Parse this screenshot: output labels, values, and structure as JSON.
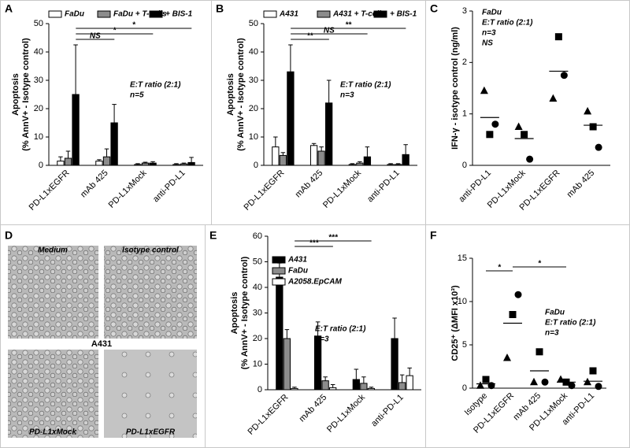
{
  "chart_data": [
    {
      "type": "bar",
      "letter": "A",
      "ylabel": [
        "Apoptosis",
        "(% AnnV+ - Isotype control)"
      ],
      "categories": [
        "PD-L1xEGFR",
        "mAb 425",
        "PD-L1xMock",
        "anti-PD-L1"
      ],
      "series": [
        {
          "name": "FaDu",
          "color": "#ffffff",
          "values": [
            1.5,
            1.5,
            0.3,
            0.3
          ],
          "errors": [
            1.5,
            0.5,
            0.3,
            0.3
          ]
        },
        {
          "name": "FaDu + T-cells",
          "color": "#8c8c8c",
          "values": [
            2.5,
            3,
            0.8,
            0.5
          ],
          "errors": [
            2.5,
            2.8,
            0.3,
            0.3
          ]
        },
        {
          "name": "+ BIS-1",
          "color": "#000000",
          "values": [
            25,
            15,
            0.8,
            1
          ],
          "errors": [
            17.5,
            6.5,
            0.5,
            1.8
          ]
        }
      ],
      "ylim": [
        0,
        50
      ],
      "yticks": [
        0,
        10,
        20,
        30,
        40,
        50
      ],
      "legend": "top",
      "annotations": [
        "E:T ratio (2:1)",
        "n=5"
      ],
      "comparisons": [
        {
          "label": "NS",
          "between": [
            0,
            1
          ]
        },
        {
          "label": "*",
          "between": [
            0,
            2
          ]
        },
        {
          "label": "*",
          "between": [
            0,
            3
          ]
        }
      ]
    },
    {
      "type": "bar",
      "letter": "B",
      "ylabel": [
        "Apoptosis",
        "(% AnnV+ - Isotype control)"
      ],
      "categories": [
        "PD-L1xEGFR",
        "mAb 425",
        "PD-L1xMock",
        "anti-PD-L1"
      ],
      "series": [
        {
          "name": "A431",
          "color": "#ffffff",
          "values": [
            6.5,
            7,
            0.3,
            0.3
          ],
          "errors": [
            3.5,
            0.7,
            0.3,
            0.3
          ]
        },
        {
          "name": "A431 + T-cells",
          "color": "#8c8c8c",
          "values": [
            3.5,
            5,
            0.8,
            0.3
          ],
          "errors": [
            1,
            1.5,
            0.5,
            0.3
          ]
        },
        {
          "name": "+ BIS-1",
          "color": "#000000",
          "values": [
            33,
            22,
            3,
            3.8
          ],
          "errors": [
            9.5,
            8,
            3.5,
            3.5
          ]
        }
      ],
      "ylim": [
        0,
        50
      ],
      "yticks": [
        0,
        10,
        20,
        30,
        40,
        50
      ],
      "legend": "top",
      "annotations": [
        "E:T ratio (2:1)",
        "n=3"
      ],
      "comparisons": [
        {
          "label": "**",
          "between": [
            0,
            1
          ]
        },
        {
          "label": "NS",
          "between": [
            0,
            2
          ]
        },
        {
          "label": "**",
          "between": [
            0,
            3
          ]
        }
      ]
    },
    {
      "type": "dotplot",
      "letter": "C",
      "ylabel": [
        "IFN-γ - isotype control (ng/ml)"
      ],
      "categories": [
        "anti-PD-L1",
        "PD-L1xMock",
        "PD-L1xEGFR",
        "mAb 425"
      ],
      "points": [
        {
          "marker": "triangle",
          "values": [
            1.45,
            0.75,
            1.3,
            1.05
          ]
        },
        {
          "marker": "circle",
          "values": [
            0.8,
            0.12,
            1.75,
            0.35
          ]
        },
        {
          "marker": "square",
          "values": [
            0.6,
            0.6,
            2.5,
            0.75
          ]
        }
      ],
      "means": [
        0.93,
        0.52,
        1.83,
        0.78
      ],
      "ylim": [
        0,
        3
      ],
      "yticks": [
        0,
        1,
        2,
        3
      ],
      "annotations": [
        "FaDu",
        "E:T ratio (2:1)",
        "n=3",
        "NS"
      ],
      "comparisons": []
    },
    {
      "type": "bar",
      "letter": "E",
      "ylabel": [
        "Apoptosis",
        "(% AnnV+ - Isotype control)"
      ],
      "categories": [
        "PD-L1xEGFR",
        "mAb 425",
        "PD-L1xMock",
        "anti-PD-L1"
      ],
      "series": [
        {
          "name": "A431",
          "color": "#000000",
          "values": [
            44,
            21,
            4,
            20
          ],
          "errors": [
            5.5,
            5.5,
            4,
            8
          ]
        },
        {
          "name": "FaDu",
          "color": "#8c8c8c",
          "values": [
            20,
            3.5,
            2.5,
            2.8
          ],
          "errors": [
            3.5,
            1.5,
            2.5,
            3
          ]
        },
        {
          "name": "A2058.EpCAM",
          "color": "#ffffff",
          "values": [
            0.5,
            0.8,
            0.5,
            5.5
          ],
          "errors": [
            0.5,
            1.2,
            0.5,
            3
          ]
        }
      ],
      "ylim": [
        0,
        60
      ],
      "yticks": [
        0,
        10,
        20,
        30,
        40,
        50,
        60
      ],
      "legend": "upper left",
      "annotations": [
        "E:T ratio (2:1)",
        "n=3"
      ],
      "comparisons": [
        {
          "label": "***",
          "between": [
            0,
            1
          ]
        },
        {
          "label": "***",
          "between": [
            0,
            2
          ]
        }
      ]
    },
    {
      "type": "dotplot",
      "letter": "F",
      "ylabel": [
        "CD25⁺ (ΔMFI x10³)"
      ],
      "categories": [
        "Isotype",
        "PD-L1xEGFR",
        "mAb 425",
        "PD-L1xMock",
        "anti-PD-L1"
      ],
      "points": [
        {
          "marker": "triangle",
          "values": [
            0.3,
            3.5,
            0.7,
            1.0,
            0.7
          ]
        },
        {
          "marker": "circle",
          "values": [
            0.3,
            10.8,
            0.7,
            0.3,
            0.2
          ]
        },
        {
          "marker": "square",
          "values": [
            1.0,
            8.5,
            4.2,
            0.7,
            2.0
          ]
        }
      ],
      "means": [
        0.5,
        7.5,
        2.0,
        0.7,
        0.8
      ],
      "ylim": [
        0,
        15
      ],
      "yticks": [
        0,
        5,
        10,
        15
      ],
      "annotations": [
        "FaDu",
        "E:T ratio (2:1)",
        "n=3"
      ],
      "comparisons": [
        {
          "label": "*",
          "between": [
            0,
            1
          ]
        },
        {
          "label": "*",
          "between": [
            1,
            3
          ]
        }
      ]
    }
  ],
  "panel_d": {
    "letter": "D",
    "images": [
      "Medium",
      "Isotype control",
      "PD-L1xMock",
      "PD-L1xEGFR"
    ],
    "center": "A431"
  }
}
